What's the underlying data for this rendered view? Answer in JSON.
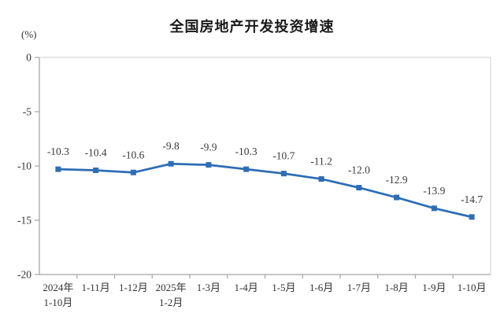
{
  "chart_data": {
    "type": "line",
    "title": "全国房地产开发投资增速",
    "ylabel": "(%)",
    "ylim": [
      -20,
      0
    ],
    "yticks": [
      0,
      -5,
      -10,
      -15,
      -20
    ],
    "ytick_labels": [
      "0",
      "-5",
      "-10",
      "-15",
      "-20"
    ],
    "grid": false,
    "legend": "none",
    "categories": [
      [
        "2024年",
        "1-10月"
      ],
      [
        "1-11月"
      ],
      [
        "1-12月"
      ],
      [
        "2025年",
        "1-2月"
      ],
      [
        "1-3月"
      ],
      [
        "1-4月"
      ],
      [
        "1-5月"
      ],
      [
        "1-6月"
      ],
      [
        "1-7月"
      ],
      [
        "1-8月"
      ],
      [
        "1-9月"
      ],
      [
        "1-10月"
      ]
    ],
    "series": [
      {
        "values": [
          -10.3,
          -10.4,
          -10.6,
          -9.8,
          -9.9,
          -10.3,
          -10.7,
          -11.2,
          -12.0,
          -12.9,
          -13.9,
          -14.7
        ],
        "labels": [
          "-10.3",
          "-10.4",
          "-10.6",
          "-9.8",
          "-9.9",
          "-10.3",
          "-10.7",
          "-11.2",
          "-12.0",
          "-12.9",
          "-13.9",
          "-14.7"
        ]
      }
    ],
    "colors": {
      "line": "#2E6DB4",
      "marker": "#2E6DB4",
      "data_label": "#3a3a3a",
      "tick_label": "#333333",
      "axis_line": "#aaaaaa",
      "plot_border": "#d9d9d9",
      "background": "#ffffff"
    }
  }
}
